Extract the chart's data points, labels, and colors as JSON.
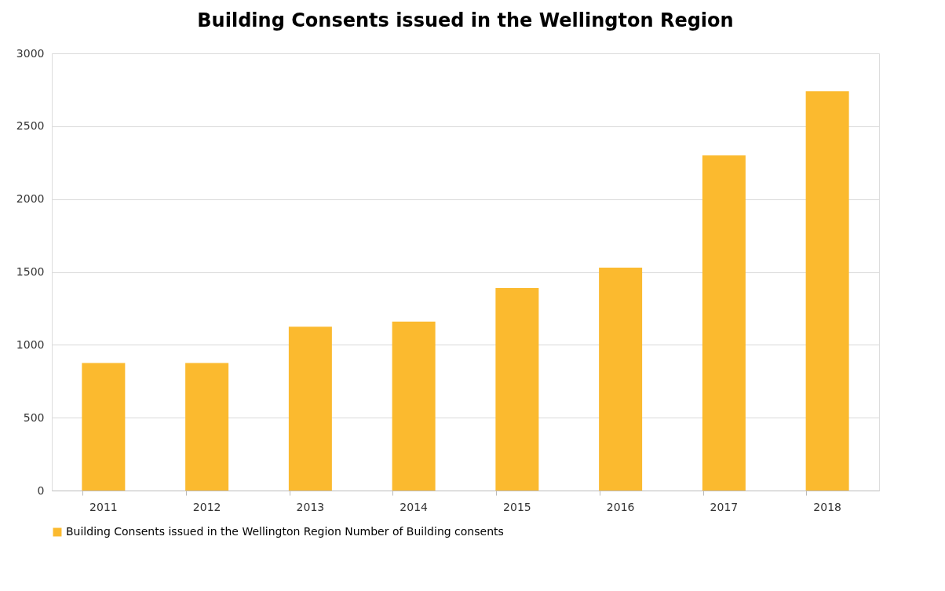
{
  "chart_data": {
    "type": "bar",
    "title": "Building Consents issued in the Wellington Region",
    "categories": [
      "2011",
      "2012",
      "2013",
      "2014",
      "2015",
      "2016",
      "2017",
      "2018"
    ],
    "series": [
      {
        "name": "Building Consents issued in the Wellington Region Number of Building consents",
        "color": "#fbba2f",
        "values": [
          875,
          875,
          1125,
          1160,
          1390,
          1530,
          2300,
          2740
        ]
      }
    ],
    "ylim": [
      0,
      3000
    ],
    "yticks": [
      0,
      500,
      1000,
      1500,
      2000,
      2500,
      3000
    ],
    "grid": "y",
    "legend": "bottom"
  }
}
